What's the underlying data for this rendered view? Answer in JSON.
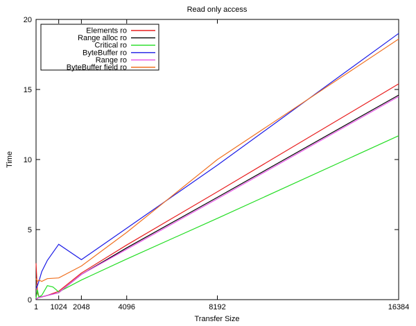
{
  "chart_data": {
    "type": "line",
    "title": "Read only access",
    "xlabel": "Transfer Size",
    "ylabel": "Time",
    "xlim": [
      0,
      16384
    ],
    "ylim": [
      0,
      20
    ],
    "xticks": [
      1,
      1024,
      2048,
      4096,
      8192,
      16384
    ],
    "yticks": [
      0,
      5,
      10,
      15,
      20
    ],
    "grid": false,
    "legend_position": "top-left",
    "series": [
      {
        "name": "Elements ro",
        "color": "#e81e1e",
        "x": [
          1,
          64,
          128,
          256,
          512,
          1024,
          2048,
          4096,
          8192,
          16384
        ],
        "y": [
          2.6,
          0.5,
          0.2,
          0.2,
          0.3,
          0.6,
          1.9,
          3.9,
          7.7,
          15.4
        ]
      },
      {
        "name": "Range alloc ro",
        "color": "#000000",
        "x": [
          1,
          64,
          128,
          256,
          512,
          1024,
          2048,
          4096,
          8192,
          16384
        ],
        "y": [
          0.05,
          0.1,
          0.15,
          0.2,
          0.3,
          0.5,
          1.8,
          3.7,
          7.3,
          14.6
        ]
      },
      {
        "name": "Critical ro",
        "color": "#22dd22",
        "x": [
          1,
          64,
          128,
          256,
          512,
          768,
          1024,
          2048,
          4096,
          8192,
          16384
        ],
        "y": [
          0.1,
          0.7,
          0.2,
          0.3,
          1.0,
          0.9,
          0.55,
          1.4,
          2.9,
          5.8,
          11.7
        ]
      },
      {
        "name": "ByteBuffer ro",
        "color": "#1a1ae6",
        "x": [
          1,
          64,
          128,
          256,
          512,
          1024,
          2048,
          4096,
          8192,
          16384
        ],
        "y": [
          0.8,
          1.0,
          1.3,
          2.0,
          2.8,
          3.95,
          2.85,
          5.1,
          9.6,
          19.0
        ]
      },
      {
        "name": "Range ro",
        "color": "#e64ce6",
        "x": [
          1,
          64,
          128,
          256,
          512,
          1024,
          2048,
          4096,
          8192,
          16384
        ],
        "y": [
          0.05,
          0.1,
          0.15,
          0.2,
          0.3,
          0.5,
          1.8,
          3.6,
          7.2,
          14.5
        ]
      },
      {
        "name": "ByteBuffer field ro",
        "color": "#f07020",
        "x": [
          1,
          64,
          128,
          256,
          512,
          1024,
          2048,
          4096,
          8192,
          16384
        ],
        "y": [
          1.5,
          1.3,
          1.4,
          1.3,
          1.5,
          1.55,
          2.4,
          4.8,
          10.0,
          18.6
        ]
      }
    ]
  }
}
